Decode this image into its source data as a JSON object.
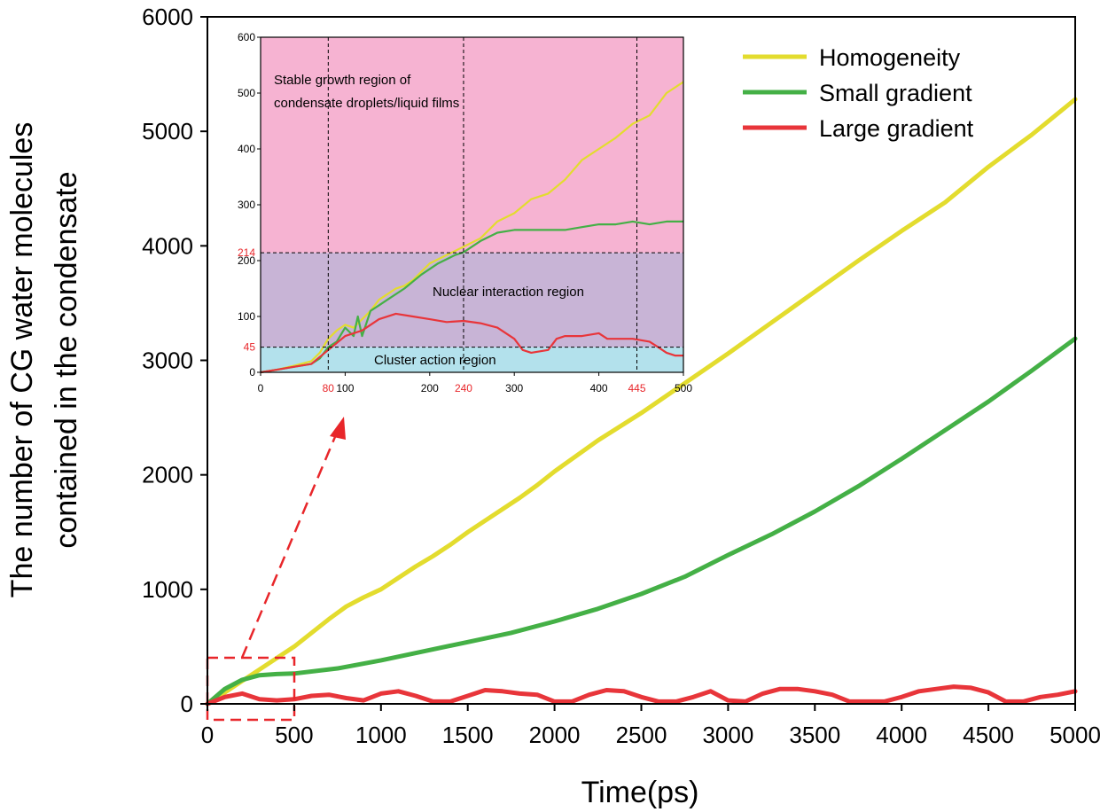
{
  "chart_data": {
    "type": "line",
    "xlabel": "Time(ps)",
    "ylabel_lines": [
      "The number of CG water molecules",
      "contained in the condensate"
    ],
    "xlim": [
      0,
      5000
    ],
    "ylim": [
      0,
      6000
    ],
    "xticks": [
      0,
      500,
      1000,
      1500,
      2000,
      2500,
      3000,
      3500,
      4000,
      4500,
      5000
    ],
    "yticks": [
      0,
      1000,
      2000,
      3000,
      4000,
      5000,
      6000
    ],
    "legend_position": "top-right",
    "series": [
      {
        "name": "Homogeneity",
        "color": "#e3dc2e",
        "x": [
          0,
          100,
          200,
          300,
          400,
          500,
          600,
          700,
          800,
          900,
          1000,
          1100,
          1200,
          1300,
          1400,
          1500,
          1600,
          1700,
          1800,
          1900,
          2000,
          2250,
          2500,
          2750,
          3000,
          3250,
          3500,
          3750,
          4000,
          4250,
          4500,
          4750,
          5000
        ],
        "y": [
          0,
          100,
          200,
          300,
          400,
          500,
          620,
          740,
          850,
          930,
          1000,
          1100,
          1200,
          1290,
          1390,
          1500,
          1600,
          1700,
          1800,
          1910,
          2030,
          2300,
          2540,
          2800,
          3060,
          3330,
          3600,
          3870,
          4130,
          4380,
          4690,
          4970,
          5280
        ]
      },
      {
        "name": "Small gradient",
        "color": "#44b046",
        "x": [
          0,
          100,
          200,
          300,
          400,
          500,
          750,
          1000,
          1250,
          1500,
          1750,
          2000,
          2250,
          2500,
          2750,
          3000,
          3250,
          3500,
          3750,
          4000,
          4250,
          4500,
          4750,
          5000
        ],
        "y": [
          0,
          130,
          210,
          250,
          260,
          265,
          310,
          380,
          460,
          540,
          620,
          720,
          830,
          960,
          1110,
          1300,
          1480,
          1680,
          1900,
          2140,
          2390,
          2640,
          2910,
          3190
        ]
      },
      {
        "name": "Large gradient",
        "color": "#e8353a",
        "x": [
          0,
          100,
          200,
          300,
          400,
          500,
          600,
          700,
          800,
          900,
          1000,
          1100,
          1200,
          1300,
          1400,
          1500,
          1600,
          1700,
          1800,
          1900,
          2000,
          2100,
          2200,
          2300,
          2400,
          2500,
          2600,
          2700,
          2800,
          2900,
          3000,
          3100,
          3200,
          3300,
          3400,
          3500,
          3600,
          3700,
          3800,
          3900,
          4000,
          4100,
          4200,
          4300,
          4400,
          4500,
          4600,
          4700,
          4800,
          4900,
          5000
        ],
        "y": [
          0,
          60,
          90,
          40,
          30,
          40,
          70,
          80,
          50,
          30,
          90,
          110,
          70,
          20,
          20,
          70,
          120,
          110,
          90,
          80,
          20,
          20,
          80,
          120,
          110,
          60,
          20,
          20,
          60,
          110,
          30,
          20,
          90,
          130,
          130,
          110,
          80,
          20,
          20,
          20,
          60,
          110,
          130,
          150,
          140,
          100,
          20,
          20,
          60,
          80,
          110
        ]
      }
    ],
    "inset": {
      "xlim": [
        0,
        500
      ],
      "ylim": [
        0,
        600
      ],
      "xticks": [
        0,
        100,
        200,
        300,
        400,
        500
      ],
      "yticks": [
        0,
        100,
        200,
        300,
        400,
        500,
        600
      ],
      "red_xticks": [
        80,
        240,
        445
      ],
      "red_yticks": [
        45,
        214
      ],
      "regions": [
        {
          "name": "Cluster action region",
          "from": 0,
          "to": 45,
          "color": "#b3e1ec"
        },
        {
          "name": "Nuclear interaction region",
          "from": 45,
          "to": 214,
          "color": "#c8b4d6"
        },
        {
          "name": "Stable growth region of condensate droplets/liquid films",
          "from": 214,
          "to": 600,
          "color": "#f6b3d2"
        }
      ],
      "region_labels": {
        "stable_line1": "Stable growth region of",
        "stable_line2": "condensate droplets/liquid films",
        "nuclear": "Nuclear interaction region",
        "cluster": "Cluster action region"
      },
      "series": [
        {
          "name": "Homogeneity",
          "color": "#e3dc2e",
          "x": [
            0,
            20,
            40,
            60,
            70,
            80,
            90,
            100,
            110,
            120,
            130,
            140,
            150,
            160,
            170,
            180,
            200,
            220,
            240,
            260,
            280,
            300,
            320,
            340,
            360,
            380,
            400,
            420,
            440,
            460,
            480,
            500
          ],
          "y": [
            0,
            5,
            12,
            20,
            35,
            60,
            75,
            85,
            80,
            95,
            110,
            130,
            140,
            150,
            155,
            165,
            195,
            210,
            225,
            240,
            270,
            285,
            310,
            320,
            345,
            380,
            400,
            420,
            445,
            460,
            500,
            520
          ]
        },
        {
          "name": "Small gradient",
          "color": "#44b046",
          "x": [
            0,
            20,
            40,
            60,
            70,
            80,
            90,
            100,
            110,
            115,
            120,
            130,
            140,
            150,
            170,
            190,
            210,
            230,
            240,
            260,
            280,
            300,
            320,
            340,
            360,
            380,
            400,
            420,
            440,
            460,
            480,
            500
          ],
          "y": [
            0,
            5,
            10,
            15,
            25,
            45,
            55,
            80,
            65,
            100,
            65,
            110,
            120,
            130,
            150,
            175,
            195,
            210,
            215,
            235,
            250,
            255,
            255,
            255,
            255,
            260,
            265,
            265,
            270,
            265,
            270,
            270
          ]
        },
        {
          "name": "Large gradient",
          "color": "#e8353a",
          "x": [
            0,
            20,
            40,
            60,
            80,
            100,
            120,
            140,
            160,
            180,
            200,
            220,
            240,
            260,
            280,
            300,
            310,
            320,
            340,
            350,
            360,
            380,
            400,
            410,
            420,
            440,
            460,
            470,
            480,
            490,
            500
          ],
          "y": [
            0,
            5,
            10,
            15,
            40,
            65,
            75,
            95,
            105,
            100,
            95,
            90,
            92,
            88,
            80,
            60,
            40,
            35,
            40,
            60,
            65,
            65,
            70,
            60,
            60,
            60,
            55,
            45,
            35,
            30,
            30
          ]
        }
      ]
    }
  }
}
